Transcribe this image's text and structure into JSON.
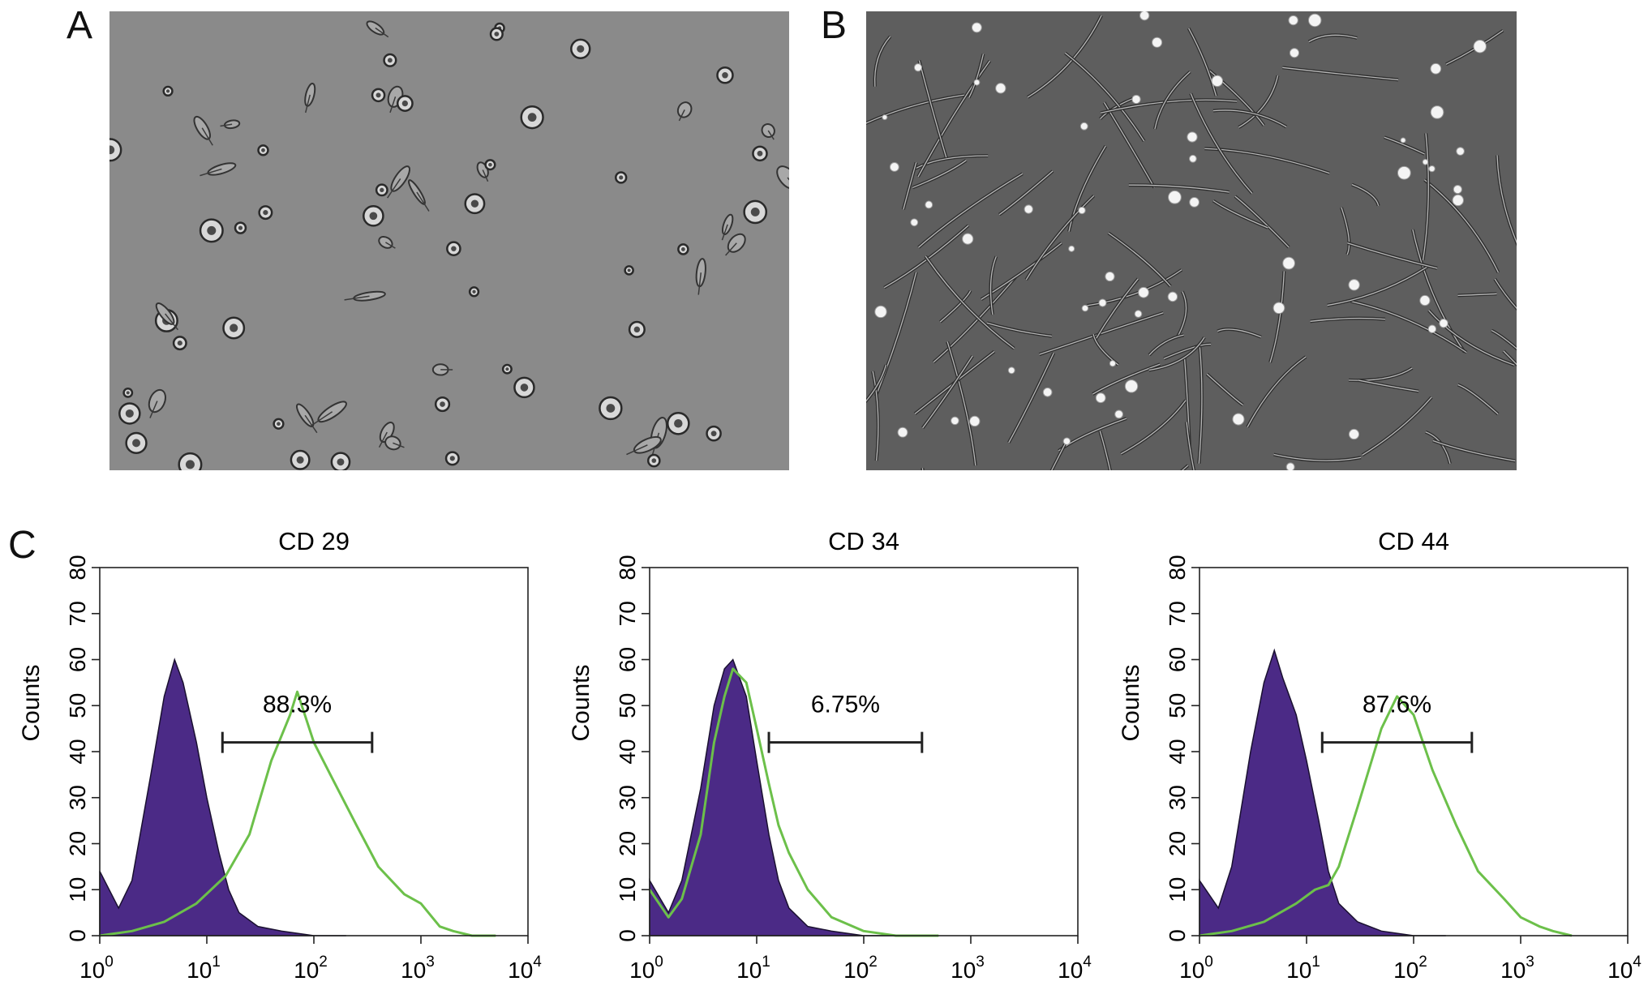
{
  "panels": {
    "a_label": "A",
    "b_label": "B",
    "c_label": "C"
  },
  "images": {
    "a": {
      "kind": "brightfield micrograph",
      "background": "#8a8a8a"
    },
    "b": {
      "kind": "phase-contrast micrograph",
      "background": "#5e5e5e"
    }
  },
  "colors": {
    "isotype_fill": "#4b2a86",
    "marker_line": "#6cc04a",
    "axis": "#222222"
  },
  "chart_data": [
    {
      "type": "area",
      "title": "CD 29",
      "xlabel": "",
      "ylabel": "Counts",
      "x_scale": "log",
      "xlim": [
        1,
        10000
      ],
      "ylim": [
        0,
        80
      ],
      "yticks": [
        "0",
        "10",
        "20",
        "30",
        "40",
        "50",
        "60",
        "70",
        "80"
      ],
      "xticks": [
        {
          "base": "10",
          "exp": "0"
        },
        {
          "base": "10",
          "exp": "1"
        },
        {
          "base": "10",
          "exp": "2"
        },
        {
          "base": "10",
          "exp": "3"
        },
        {
          "base": "10",
          "exp": "4"
        }
      ],
      "series": [
        {
          "x": [
            1,
            1.5,
            2,
            3,
            4,
            5,
            6,
            8,
            10,
            13,
            16,
            20,
            30,
            50,
            100,
            200
          ],
          "values": [
            14,
            6,
            12,
            35,
            52,
            60,
            55,
            42,
            30,
            18,
            10,
            5,
            2,
            1,
            0,
            0
          ]
        },
        {
          "x": [
            1,
            2,
            4,
            8,
            15,
            25,
            40,
            60,
            70,
            100,
            150,
            250,
            400,
            700,
            1000,
            1500,
            2000,
            3000,
            5000
          ],
          "values": [
            0,
            1,
            3,
            7,
            13,
            22,
            38,
            48,
            53,
            42,
            34,
            24,
            15,
            9,
            7,
            2,
            1,
            0,
            0
          ]
        }
      ],
      "gate": {
        "x_start": 14,
        "x_end": 350,
        "y": 42,
        "label": "88.3%"
      }
    },
    {
      "type": "area",
      "title": "CD 34",
      "xlabel": "",
      "ylabel": "Counts",
      "x_scale": "log",
      "xlim": [
        1,
        10000
      ],
      "ylim": [
        0,
        80
      ],
      "yticks": [
        "0",
        "10",
        "20",
        "30",
        "40",
        "50",
        "60",
        "70",
        "80"
      ],
      "xticks": [
        {
          "base": "10",
          "exp": "0"
        },
        {
          "base": "10",
          "exp": "1"
        },
        {
          "base": "10",
          "exp": "2"
        },
        {
          "base": "10",
          "exp": "3"
        },
        {
          "base": "10",
          "exp": "4"
        }
      ],
      "series": [
        {
          "x": [
            1,
            1.5,
            2,
            3,
            4,
            5,
            6,
            8,
            10,
            13,
            16,
            20,
            30,
            50,
            100,
            200
          ],
          "values": [
            12,
            5,
            12,
            32,
            50,
            58,
            60,
            52,
            38,
            22,
            12,
            6,
            2,
            1,
            0,
            0
          ]
        },
        {
          "x": [
            1,
            1.5,
            2,
            3,
            4,
            5,
            6,
            8,
            10,
            13,
            16,
            20,
            30,
            50,
            100,
            200,
            500
          ],
          "values": [
            10,
            4,
            8,
            22,
            42,
            52,
            58,
            55,
            45,
            33,
            24,
            18,
            10,
            4,
            1,
            0,
            0
          ]
        }
      ],
      "gate": {
        "x_start": 13,
        "x_end": 350,
        "y": 42,
        "label": "6.75%"
      }
    },
    {
      "type": "area",
      "title": "CD 44",
      "xlabel": "",
      "ylabel": "Counts",
      "x_scale": "log",
      "xlim": [
        1,
        10000
      ],
      "ylim": [
        0,
        80
      ],
      "yticks": [
        "0",
        "10",
        "20",
        "30",
        "40",
        "50",
        "60",
        "70",
        "80"
      ],
      "xticks": [
        {
          "base": "10",
          "exp": "0"
        },
        {
          "base": "10",
          "exp": "1"
        },
        {
          "base": "10",
          "exp": "2"
        },
        {
          "base": "10",
          "exp": "3"
        },
        {
          "base": "10",
          "exp": "4"
        }
      ],
      "series": [
        {
          "x": [
            1,
            1.5,
            2,
            3,
            4,
            5,
            6,
            8,
            10,
            13,
            16,
            20,
            30,
            50,
            100,
            200
          ],
          "values": [
            12,
            6,
            15,
            40,
            55,
            62,
            56,
            48,
            38,
            25,
            14,
            7,
            3,
            1,
            0,
            0
          ]
        },
        {
          "x": [
            1,
            2,
            4,
            8,
            12,
            16,
            20,
            30,
            50,
            70,
            100,
            150,
            250,
            400,
            700,
            1000,
            1500,
            2000,
            3000
          ],
          "values": [
            0,
            1,
            3,
            7,
            10,
            11,
            15,
            28,
            45,
            52,
            48,
            36,
            24,
            14,
            8,
            4,
            2,
            1,
            0
          ]
        }
      ],
      "gate": {
        "x_start": 14,
        "x_end": 350,
        "y": 42,
        "label": "87.6%"
      }
    }
  ]
}
